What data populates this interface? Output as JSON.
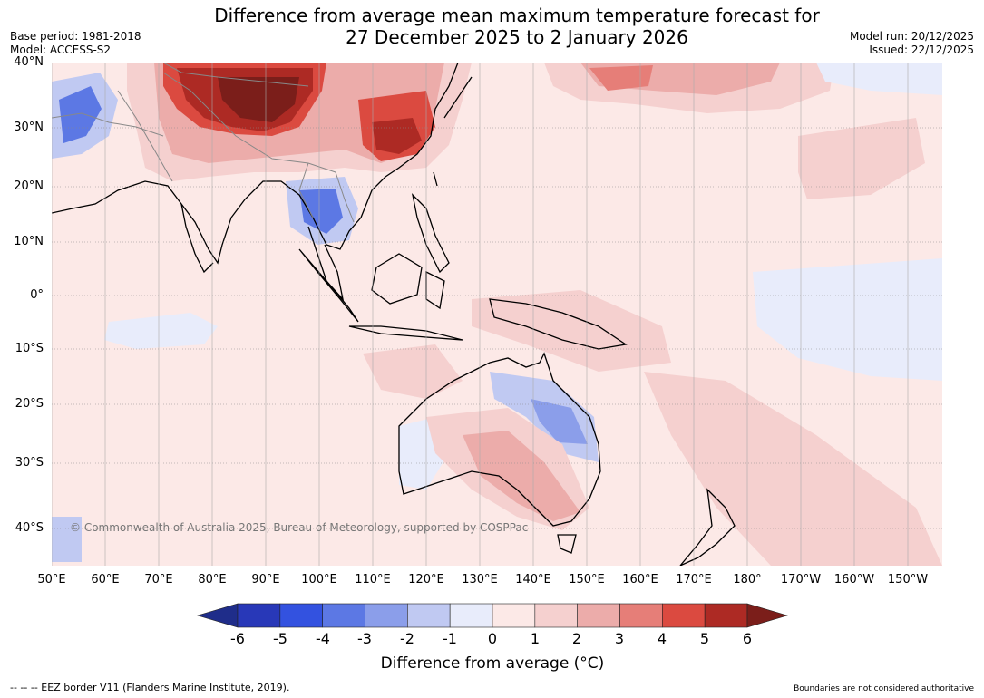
{
  "title": {
    "line1": "Difference from average mean maximum temperature forecast for",
    "line2": "27 December 2025 to 2 January 2026"
  },
  "meta_left": {
    "base_period": "Base period: 1981-2018",
    "model": "Model: ACCESS-S2"
  },
  "meta_right": {
    "model_run": "Model run: 20/12/2025",
    "issued": "Issued: 22/12/2025"
  },
  "map": {
    "lat_labels": [
      "40°N",
      "30°N",
      "20°N",
      "10°N",
      "0°",
      "10°S",
      "20°S",
      "30°S",
      "40°S"
    ],
    "lon_labels": [
      "50°E",
      "60°E",
      "70°E",
      "80°E",
      "90°E",
      "100°E",
      "110°E",
      "120°E",
      "130°E",
      "140°E",
      "150°E",
      "160°E",
      "170°E",
      "180°",
      "170°W",
      "160°W",
      "150°W"
    ],
    "copyright": "© Commonwealth of Australia 2025, Bureau of Meteorology, supported by COSPPac",
    "ocean_color": "#fbe9e7"
  },
  "colorbar": {
    "ticks": [
      "-6",
      "-5",
      "-4",
      "-3",
      "-2",
      "-1",
      "0",
      "1",
      "2",
      "3",
      "4",
      "5",
      "6"
    ],
    "colors": [
      "#1f2d8a",
      "#2838b8",
      "#3352e0",
      "#5c78e4",
      "#8b9eea",
      "#c0c9f2",
      "#e8ecfb",
      "#fce9e7",
      "#f5d0cf",
      "#ecacaa",
      "#e67e78",
      "#db4a40",
      "#ad2a24",
      "#7b1e1a"
    ],
    "label": "Difference from average (°C)"
  },
  "footer": {
    "eez_note": "--  --  -- EEZ border V11 (Flanders Marine Institute, 2019).",
    "boundaries_note": "Boundaries are not considered authoritative"
  }
}
